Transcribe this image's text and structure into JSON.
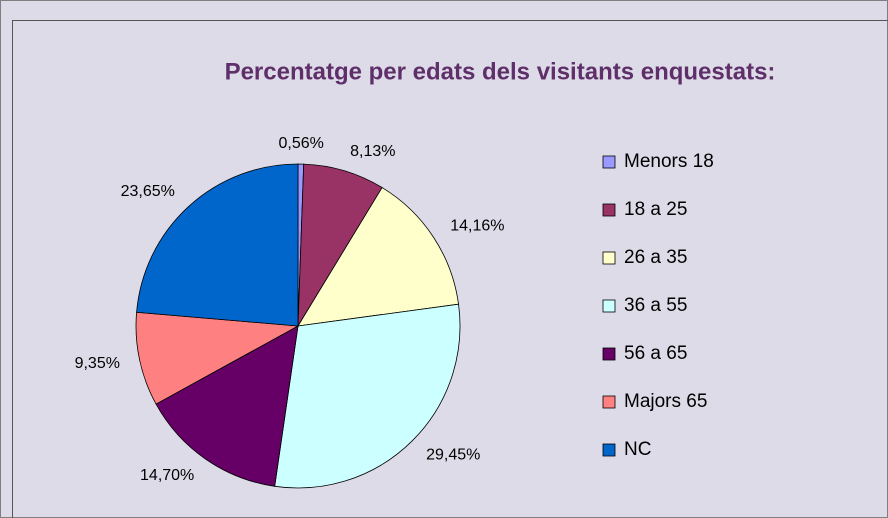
{
  "chart_data": {
    "type": "pie",
    "title": "Percentatge per edats dels visitants enquestats:",
    "categories": [
      "Menors 18",
      "18 a 25",
      "26 a 35",
      "36 a 55",
      "56 a 65",
      "Majors 65",
      "NC"
    ],
    "values": [
      0.56,
      8.13,
      14.16,
      29.45,
      14.7,
      9.35,
      23.65
    ],
    "value_labels": [
      "0,56%",
      "8,13%",
      "14,16%",
      "29,45%",
      "14,70%",
      "9,35%",
      "23,65%"
    ],
    "colors": [
      "#9999ff",
      "#993366",
      "#ffffcc",
      "#ccffff",
      "#660066",
      "#ff8080",
      "#0066cc"
    ],
    "legend": "right"
  }
}
